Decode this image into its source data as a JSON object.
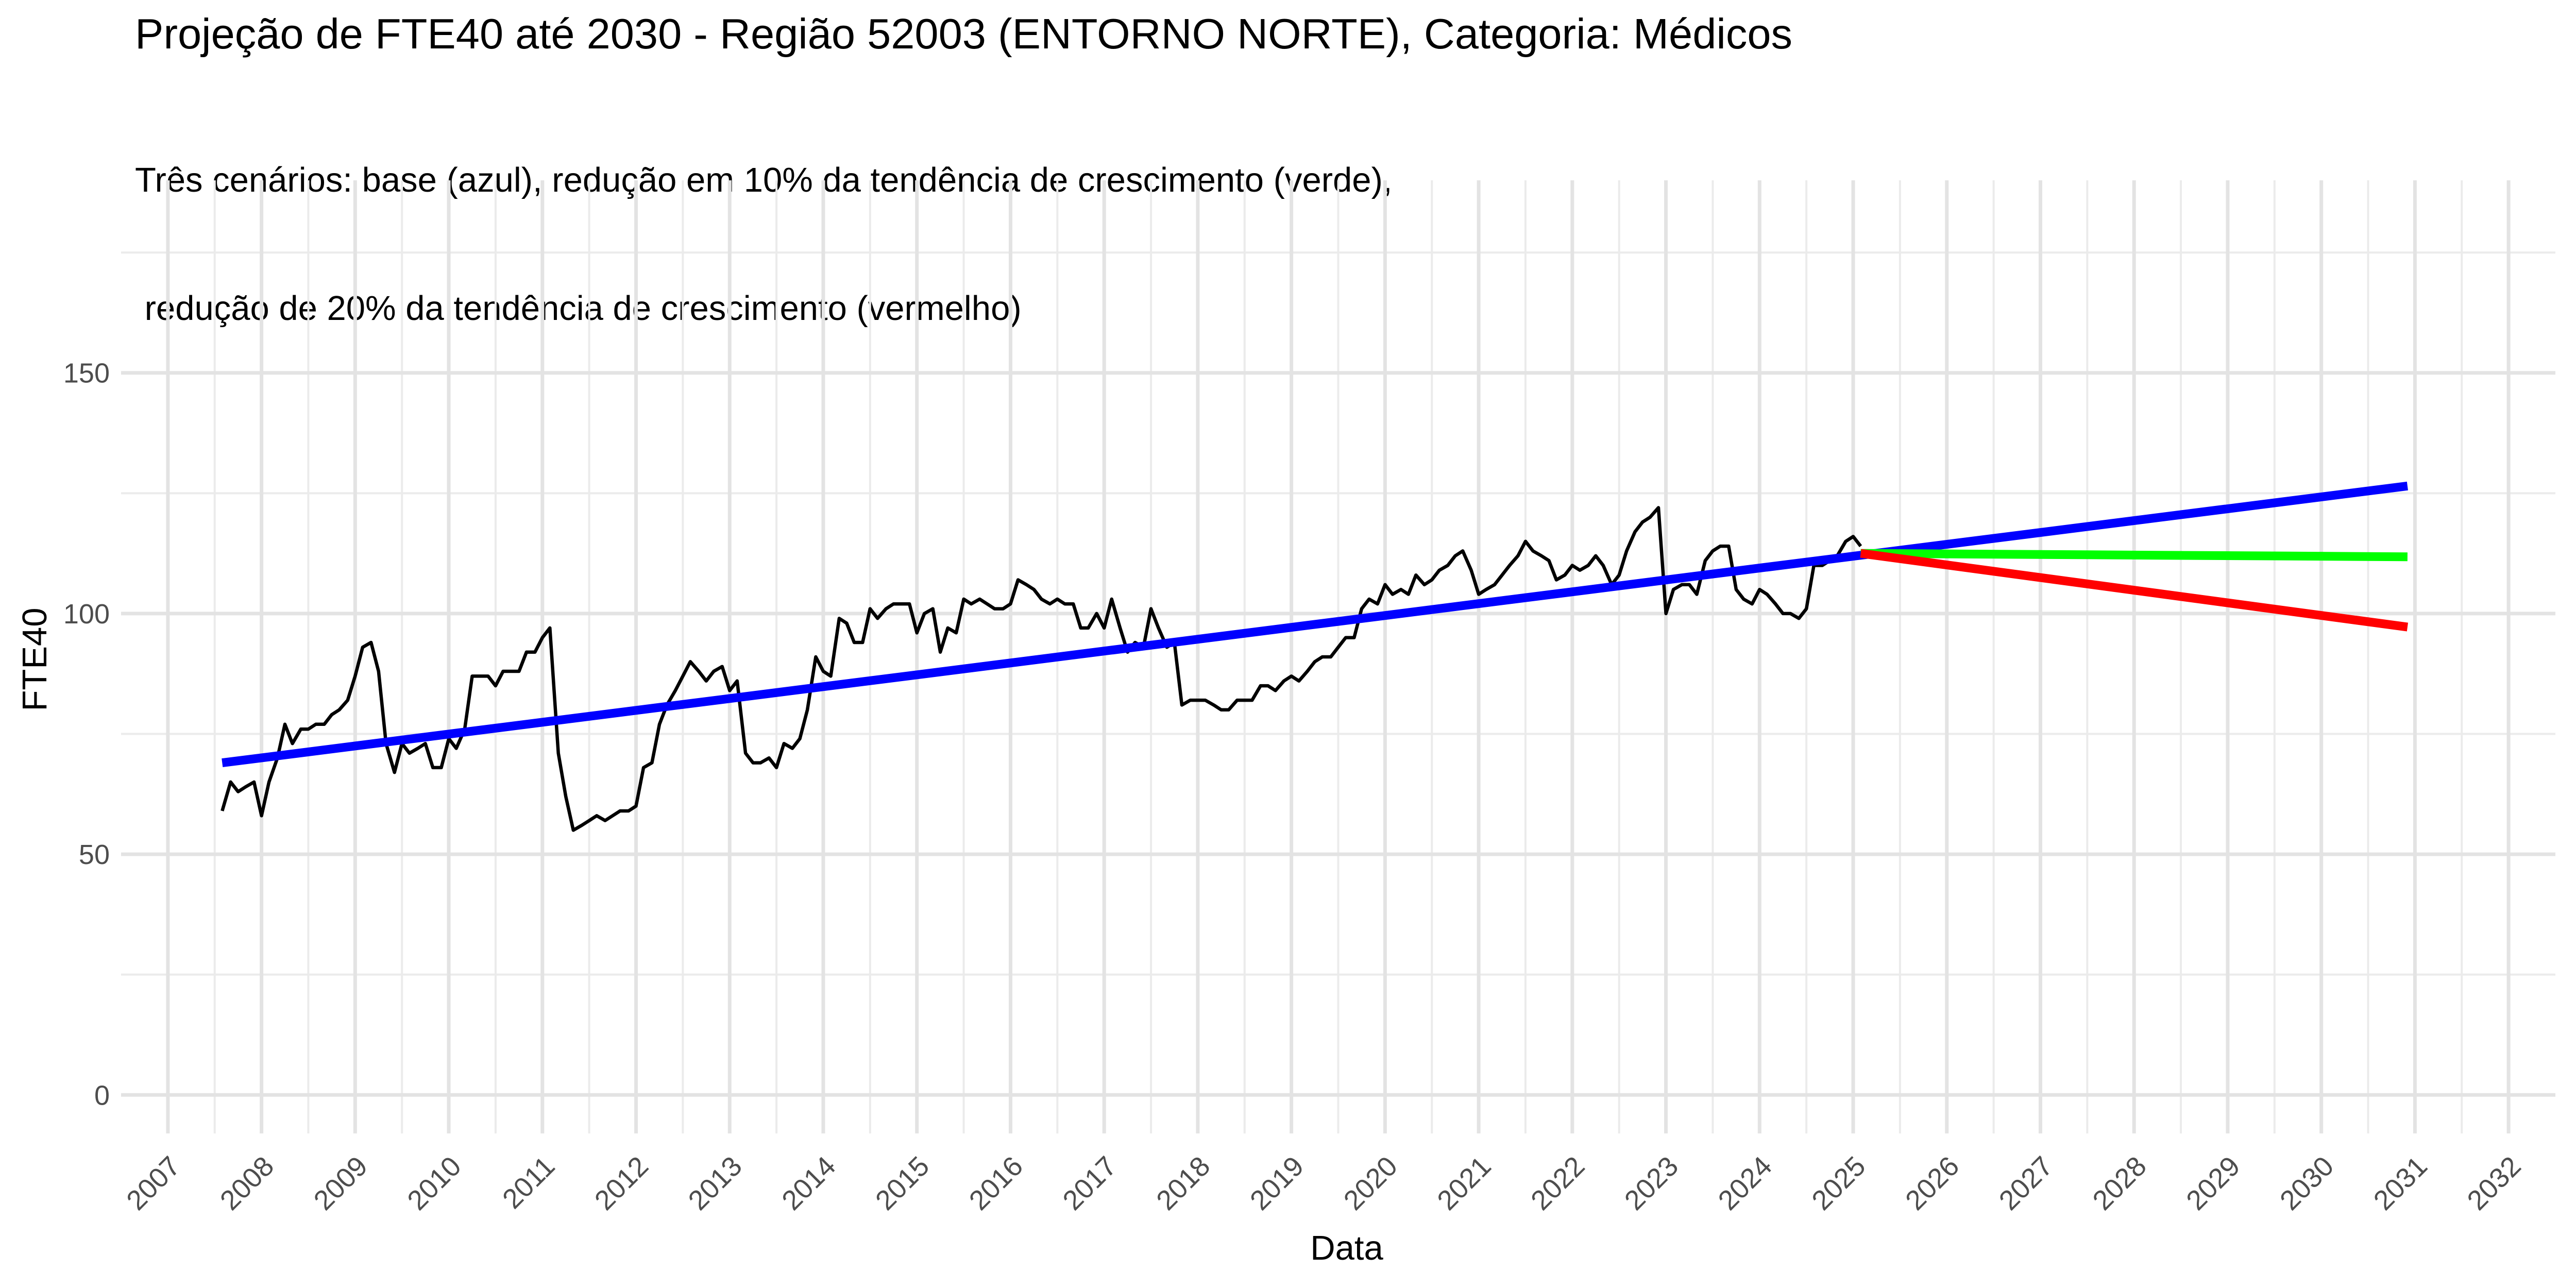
{
  "chart_data": {
    "type": "line",
    "title": "Projeção de FTE40 até 2030 - Região 52003 (ENTORNO NORTE), Categoria: Médicos",
    "subtitle_lines": [
      "Três cenários: base (azul), redução em 10% da tendência de crescimento (verde),",
      " redução de 20% da tendência de crescimento (vermelho)"
    ],
    "xlabel": "Data",
    "ylabel": "FTE40",
    "xlim": [
      2006.5,
      2032.5
    ],
    "ylim": [
      -8,
      190
    ],
    "x_ticks": [
      2007,
      2008,
      2009,
      2010,
      2011,
      2012,
      2013,
      2014,
      2015,
      2016,
      2017,
      2018,
      2019,
      2020,
      2021,
      2022,
      2023,
      2024,
      2025,
      2026,
      2027,
      2028,
      2029,
      2030,
      2031,
      2032
    ],
    "x_tick_labels": [
      "2007",
      "2008",
      "2009",
      "2010",
      "2011",
      "2012",
      "2013",
      "2014",
      "2015",
      "2016",
      "2017",
      "2018",
      "2019",
      "2020",
      "2021",
      "2022",
      "2023",
      "2024",
      "2025",
      "2026",
      "2027",
      "2028",
      "2029",
      "2030",
      "2031",
      "2032"
    ],
    "y_ticks": [
      0,
      50,
      100,
      150
    ],
    "y_tick_labels": [
      "0",
      "50",
      "100",
      "150"
    ],
    "y_minor_ticks": [
      25,
      75,
      125,
      175
    ],
    "grid": true,
    "legend": "none",
    "series": [
      {
        "color": "#000000",
        "x": [
          2007.58,
          2007.67,
          2007.75,
          2007.83,
          2007.92,
          2008.0,
          2008.08,
          2008.17,
          2008.25,
          2008.33,
          2008.42,
          2008.5,
          2008.58,
          2008.67,
          2008.75,
          2008.83,
          2008.92,
          2009.0,
          2009.08,
          2009.17,
          2009.25,
          2009.33,
          2009.42,
          2009.5,
          2009.58,
          2009.67,
          2009.75,
          2009.83,
          2009.92,
          2010.0,
          2010.08,
          2010.17,
          2010.25,
          2010.33,
          2010.42,
          2010.5,
          2010.58,
          2010.67,
          2010.75,
          2010.83,
          2010.92,
          2011.0,
          2011.08,
          2011.17,
          2011.25,
          2011.33,
          2011.42,
          2011.5,
          2011.58,
          2011.67,
          2011.75,
          2011.83,
          2011.92,
          2012.0,
          2012.08,
          2012.17,
          2012.25,
          2012.33,
          2012.42,
          2012.5,
          2012.58,
          2012.67,
          2012.75,
          2012.83,
          2012.92,
          2013.0,
          2013.08,
          2013.17,
          2013.25,
          2013.33,
          2013.42,
          2013.5,
          2013.58,
          2013.67,
          2013.75,
          2013.83,
          2013.92,
          2014.0,
          2014.08,
          2014.17,
          2014.25,
          2014.33,
          2014.42,
          2014.5,
          2014.58,
          2014.67,
          2014.75,
          2014.83,
          2014.92,
          2015.0,
          2015.08,
          2015.17,
          2015.25,
          2015.33,
          2015.42,
          2015.5,
          2015.58,
          2015.67,
          2015.75,
          2015.83,
          2015.92,
          2016.0,
          2016.08,
          2016.17,
          2016.25,
          2016.33,
          2016.42,
          2016.5,
          2016.58,
          2016.67,
          2016.75,
          2016.83,
          2016.92,
          2017.0,
          2017.08,
          2017.17,
          2017.25,
          2017.33,
          2017.42,
          2017.5,
          2017.58,
          2017.67,
          2017.75,
          2017.83,
          2017.92,
          2018.0,
          2018.08,
          2018.17,
          2018.25,
          2018.33,
          2018.42,
          2018.5,
          2018.58,
          2018.67,
          2018.75,
          2018.83,
          2018.92,
          2019.0,
          2019.08,
          2019.17,
          2019.25,
          2019.33,
          2019.42,
          2019.5,
          2019.58,
          2019.67,
          2019.75,
          2019.83,
          2019.92,
          2020.0,
          2020.08,
          2020.17,
          2020.25,
          2020.33,
          2020.42,
          2020.5,
          2020.58,
          2020.67,
          2020.75,
          2020.83,
          2020.92,
          2021.0,
          2021.08,
          2021.17,
          2021.25,
          2021.33,
          2021.42,
          2021.5,
          2021.58,
          2021.67,
          2021.75,
          2021.83,
          2021.92,
          2022.0,
          2022.08,
          2022.17,
          2022.25,
          2022.33,
          2022.42,
          2022.5,
          2022.58,
          2022.67,
          2022.75,
          2022.83,
          2022.92,
          2023.0,
          2023.08,
          2023.17,
          2023.25,
          2023.33,
          2023.42,
          2023.5,
          2023.58,
          2023.67,
          2023.75,
          2023.83,
          2023.92,
          2024.0,
          2024.08,
          2024.17,
          2024.25,
          2024.33,
          2024.42,
          2024.5,
          2024.58,
          2024.67,
          2024.75,
          2024.83,
          2024.92,
          2025.0,
          2025.08
        ],
        "y": [
          59,
          65,
          63,
          64,
          65,
          58,
          65,
          70,
          77,
          73,
          76,
          76,
          77,
          77,
          79,
          80,
          82,
          87,
          93,
          94,
          88,
          73,
          67,
          73,
          71,
          72,
          73,
          68,
          68,
          74,
          72,
          76,
          87,
          87,
          87,
          85,
          88,
          88,
          88,
          92,
          92,
          95,
          97,
          71,
          62,
          55,
          56,
          57,
          58,
          57,
          58,
          59,
          59,
          60,
          68,
          69,
          77,
          81,
          84,
          87,
          90,
          88,
          86,
          88,
          89,
          84,
          86,
          71,
          69,
          69,
          70,
          68,
          73,
          72,
          74,
          80,
          91,
          88,
          87,
          99,
          98,
          94,
          94,
          101,
          99,
          101,
          102,
          102,
          102,
          96,
          100,
          101,
          92,
          97,
          96,
          103,
          102,
          103,
          102,
          101,
          101,
          102,
          107,
          106,
          105,
          103,
          102,
          103,
          102,
          102,
          97,
          97,
          100,
          97,
          103,
          97,
          92,
          94,
          93,
          101,
          97,
          93,
          94,
          81,
          82,
          82,
          82,
          81,
          80,
          80,
          82,
          82,
          82,
          85,
          85,
          84,
          86,
          87,
          86,
          88,
          90,
          91,
          91,
          93,
          95,
          95,
          101,
          103,
          102,
          106,
          104,
          105,
          104,
          108,
          106,
          107,
          109,
          110,
          112,
          113,
          109,
          104,
          105,
          106,
          108,
          110,
          112,
          115,
          113,
          112,
          111,
          107,
          108,
          110,
          109,
          110,
          112,
          110,
          106,
          108,
          113,
          117,
          119,
          120,
          122,
          100,
          105,
          106,
          106,
          104,
          111,
          113,
          114,
          114,
          105,
          103,
          102,
          105,
          104,
          102,
          100,
          100,
          99,
          101,
          110,
          110,
          111,
          112,
          115,
          116,
          114
        ]
      },
      {
        "color": "#0000ff",
        "x": [
          2007.58,
          2030.92
        ],
        "y": [
          69,
          126.5
        ]
      },
      {
        "color": "#00ff00",
        "x": [
          2025.08,
          2030.92
        ],
        "y": [
          112.5,
          111.8
        ]
      },
      {
        "color": "#ff0000",
        "x": [
          2025.08,
          2030.92
        ],
        "y": [
          112.5,
          97.2
        ]
      }
    ]
  }
}
